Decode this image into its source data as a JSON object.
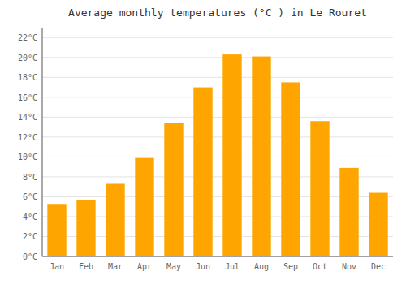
{
  "chart_data": {
    "type": "bar",
    "title": "Average monthly temperatures (°C ) in Le Rouret",
    "categories": [
      "Jan",
      "Feb",
      "Mar",
      "Apr",
      "May",
      "Jun",
      "Jul",
      "Aug",
      "Sep",
      "Oct",
      "Nov",
      "Dec"
    ],
    "values": [
      5.2,
      5.7,
      7.3,
      9.9,
      13.4,
      17.0,
      20.3,
      20.1,
      17.5,
      13.6,
      8.9,
      6.4
    ],
    "color": "#FFA500",
    "ylim": [
      0,
      23
    ],
    "yticks": [
      {
        "value": 0,
        "label": "0°C"
      },
      {
        "value": 2,
        "label": "2°C"
      },
      {
        "value": 4,
        "label": "4°C"
      },
      {
        "value": 6,
        "label": "6°C"
      },
      {
        "value": 8,
        "label": "8°C"
      },
      {
        "value": 10,
        "label": "10°C"
      },
      {
        "value": 12,
        "label": "12°C"
      },
      {
        "value": 14,
        "label": "14°C"
      },
      {
        "value": 16,
        "label": "16°C"
      },
      {
        "value": 18,
        "label": "18°C"
      },
      {
        "value": 20,
        "label": "20°C"
      },
      {
        "value": 22,
        "label": "22°C"
      }
    ],
    "grid": true
  }
}
